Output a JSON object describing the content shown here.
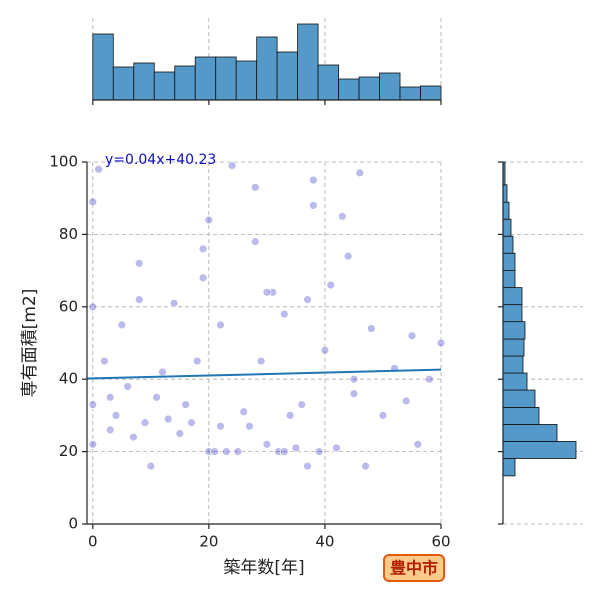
{
  "chart_data": [
    {
      "type": "scatter",
      "x_label": "築年数[年]",
      "y_label": "専有面積[m2]",
      "annotation": "y=0.04x+40.23",
      "slope": 0.04,
      "intercept": 40.23,
      "badge": "豊中市",
      "color": "#3a3ac8",
      "line_color": "#1f77b4",
      "xlim": [
        -1,
        60
      ],
      "ylim": [
        0,
        100
      ],
      "xticks": [
        0,
        20,
        40,
        60
      ],
      "yticks": [
        0,
        20,
        40,
        60,
        80,
        100
      ],
      "grid": true,
      "x": [
        0,
        0,
        0,
        0,
        1,
        2,
        3,
        4,
        5,
        6,
        7,
        8,
        9,
        10,
        11,
        12,
        13,
        14,
        15,
        16,
        17,
        18,
        19,
        20,
        20,
        21,
        22,
        23,
        24,
        25,
        26,
        27,
        28,
        29,
        30,
        31,
        32,
        33,
        34,
        35,
        36,
        37,
        38,
        39,
        40,
        41,
        42,
        43,
        44,
        45,
        46,
        47,
        48,
        50,
        52,
        54,
        56,
        58,
        60,
        3,
        8,
        19,
        22,
        30,
        33,
        37,
        38,
        45,
        55,
        28
      ],
      "y": [
        89,
        60,
        33,
        22,
        98,
        45,
        26,
        30,
        55,
        38,
        24,
        72,
        28,
        16,
        35,
        42,
        29,
        61,
        25,
        33,
        28,
        45,
        68,
        20,
        84,
        20,
        55,
        20,
        99,
        20,
        31,
        27,
        78,
        45,
        22,
        64,
        20,
        58,
        30,
        21,
        33,
        62,
        95,
        20,
        48,
        66,
        21,
        85,
        74,
        36,
        97,
        16,
        54,
        30,
        43,
        34,
        22,
        40,
        50,
        35,
        62,
        76,
        27,
        64,
        20,
        16,
        88,
        40,
        52,
        93
      ]
    },
    {
      "type": "histogram",
      "orientation": "vertical",
      "color": "#5599c8",
      "bins": [
        0,
        3.53,
        7.06,
        10.59,
        14.12,
        17.65,
        21.18,
        24.71,
        28.24,
        31.76,
        35.29,
        38.82,
        42.35,
        45.88,
        49.41,
        52.94,
        56.47,
        60
      ],
      "counts": [
        66,
        33,
        37,
        28,
        34,
        43,
        43,
        39,
        63,
        48,
        76,
        35,
        21,
        23,
        27,
        13,
        14
      ],
      "xlim": [
        -1,
        60
      ],
      "xticks": [
        0,
        20,
        40,
        60
      ],
      "ylim": [
        0,
        80
      ],
      "grid": true
    },
    {
      "type": "histogram",
      "orientation": "horizontal",
      "color": "#5599c8",
      "bins": [
        13.3,
        18.1,
        22.8,
        27.5,
        32.2,
        37.0,
        41.7,
        46.4,
        51.1,
        55.9,
        60.6,
        65.3,
        70.0,
        74.8,
        79.5,
        84.2,
        88.9,
        93.7,
        100
      ],
      "counts": [
        12,
        73,
        54,
        36,
        32,
        24,
        20,
        21,
        22,
        19,
        19,
        12,
        12,
        10,
        8,
        6,
        4,
        2
      ],
      "ylim": [
        0,
        100
      ],
      "yticks": [
        0,
        20,
        40,
        60,
        80,
        100
      ],
      "xlim": [
        0,
        80
      ],
      "grid": true
    }
  ]
}
